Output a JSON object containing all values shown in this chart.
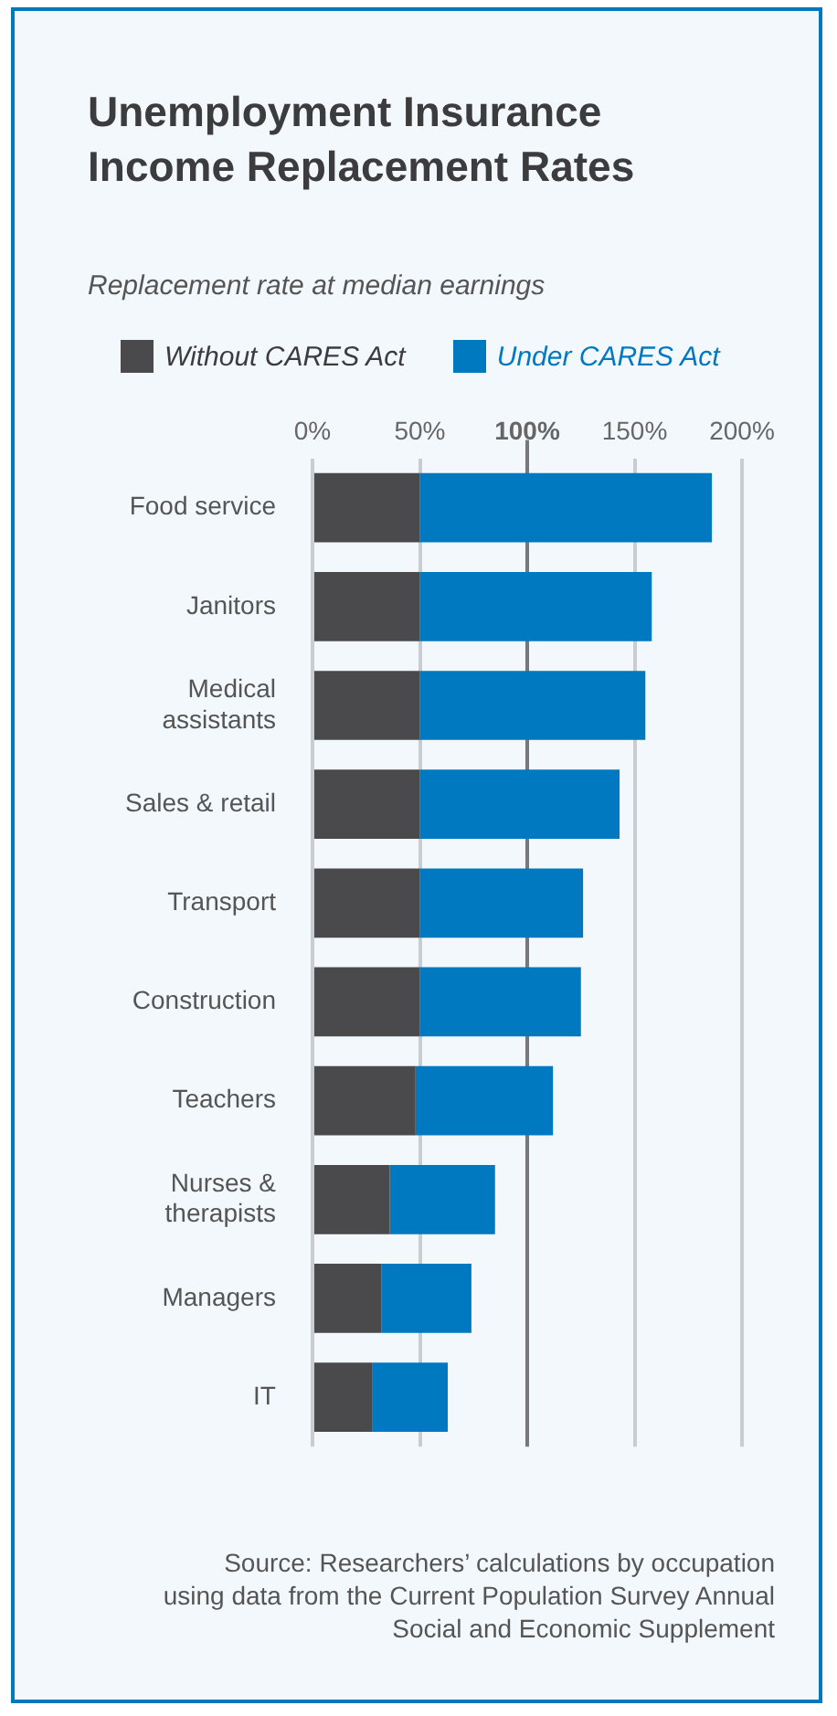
{
  "chart_data": {
    "type": "bar",
    "orientation": "horizontal",
    "stacked": true,
    "title": "Unemployment Insurance Income Replacement Rates",
    "subtitle": "Replacement rate at median earnings",
    "categories": [
      "Food service",
      "Janitors",
      "Medical assistants",
      "Sales & retail",
      "Transport",
      "Construction",
      "Teachers",
      "Nurses & therapists",
      "Managers",
      "IT"
    ],
    "series": [
      {
        "name": "Without CARES Act",
        "color": "#4a4a4c",
        "values": [
          50,
          50,
          50,
          50,
          50,
          50,
          48,
          36,
          32,
          28
        ]
      },
      {
        "name": "Under CARES Act",
        "color": "#0079c1",
        "values": [
          136,
          108,
          105,
          93,
          76,
          75,
          64,
          49,
          42,
          35
        ]
      }
    ],
    "xlim": [
      0,
      200
    ],
    "xticks": [
      {
        "value": 0,
        "label": "0%"
      },
      {
        "value": 50,
        "label": "50%"
      },
      {
        "value": 100,
        "label": "100%"
      },
      {
        "value": 150,
        "label": "150%"
      },
      {
        "value": 200,
        "label": "200%"
      }
    ],
    "grid": "x",
    "legend": "top",
    "ref_lines": [
      {
        "axis": "x",
        "value": 100,
        "color": "#77787b"
      }
    ],
    "annotations": [
      "Source: Researchers’ calculations by occupation using data from the Current Population Survey Annual Social and Economic Supplement"
    ]
  }
}
